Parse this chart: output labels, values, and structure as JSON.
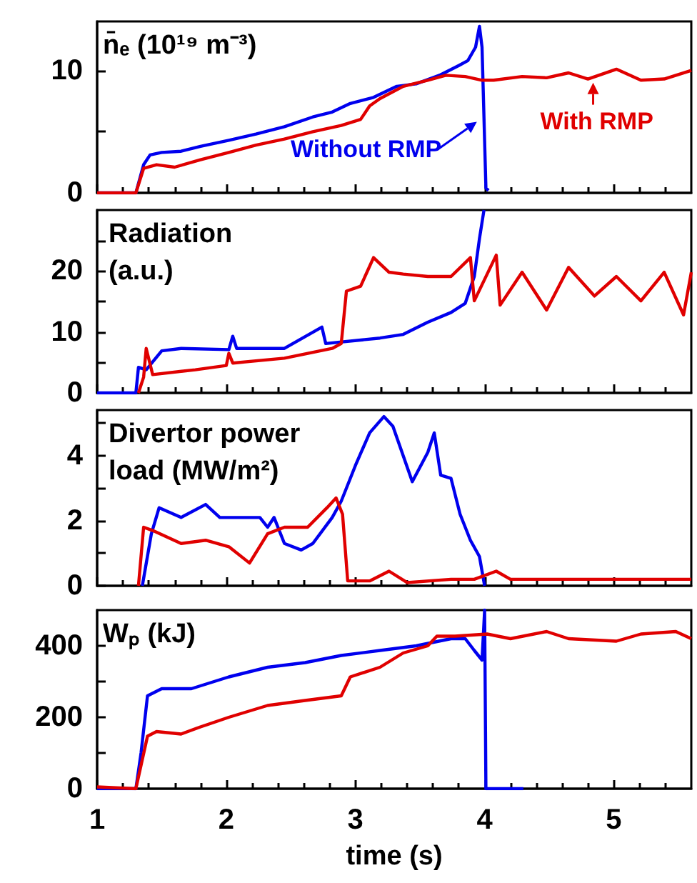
{
  "chart_data": [
    {
      "type": "line",
      "ylabel": "n̄ₑ (10¹⁹ m⁻³)",
      "xlim": [
        1,
        5.6
      ],
      "xticks": [
        1,
        2,
        3,
        4,
        5
      ],
      "ylim": [
        0,
        14
      ],
      "yticks": [
        0,
        {
          "value": 5,
          "label": null
        },
        10
      ],
      "tick_labels": "y",
      "series": [
        {
          "name": "Without RMP",
          "color": "#0000ee",
          "x": [
            1.0,
            1.3,
            1.36,
            1.41,
            1.5,
            1.65,
            1.8,
            2.02,
            2.23,
            2.45,
            2.67,
            2.82,
            2.96,
            3.14,
            3.32,
            3.47,
            3.65,
            3.8,
            3.87,
            3.93,
            3.96,
            3.98,
            4.01,
            4.03
          ],
          "values": [
            0,
            0,
            2.3,
            3.1,
            3.3,
            3.4,
            3.8,
            4.3,
            4.8,
            5.4,
            6.2,
            6.6,
            7.3,
            7.8,
            8.7,
            8.9,
            9.6,
            10.4,
            10.8,
            11.9,
            13.6,
            11.9,
            0.4,
            0.2
          ]
        },
        {
          "name": "With RMP",
          "color": "#e00000",
          "x": [
            1.0,
            1.3,
            1.36,
            1.46,
            1.6,
            1.8,
            2.02,
            2.23,
            2.45,
            2.67,
            2.89,
            3.04,
            3.11,
            3.19,
            3.37,
            3.56,
            3.7,
            3.85,
            3.98,
            4.07,
            4.29,
            4.48,
            4.65,
            4.8,
            5.02,
            5.21,
            5.39,
            5.6
          ],
          "values": [
            0,
            0,
            2.0,
            2.3,
            2.1,
            2.7,
            3.3,
            3.9,
            4.4,
            5.0,
            5.5,
            6.0,
            7.1,
            7.7,
            8.7,
            9.2,
            9.6,
            9.5,
            9.2,
            9.2,
            9.5,
            9.4,
            9.8,
            9.3,
            10.1,
            9.2,
            9.3,
            10.0
          ]
        }
      ]
    },
    {
      "type": "line",
      "ylabel": "Radiation (a.u.)",
      "xlim": [
        1,
        5.6
      ],
      "xticks": [
        1,
        2,
        3,
        4,
        5
      ],
      "ylim": [
        0,
        30
      ],
      "yticks": [
        0,
        {
          "value": 5,
          "label": null
        },
        10,
        {
          "value": 15,
          "label": null
        },
        20,
        {
          "value": 25,
          "label": null
        }
      ],
      "tick_labels": "y",
      "series": [
        {
          "color": "#0000ee",
          "x": [
            1.0,
            1.3,
            1.32,
            1.38,
            1.5,
            1.65,
            2.02,
            2.05,
            2.08,
            2.45,
            2.74,
            2.77,
            3.19,
            3.37,
            3.56,
            3.74,
            3.85,
            3.92,
            3.96,
            3.995
          ],
          "values": [
            0,
            0,
            4.2,
            3.8,
            6.9,
            7.3,
            7.1,
            9.3,
            7.3,
            7.3,
            10.8,
            8.1,
            9.0,
            9.6,
            11.6,
            13.2,
            14.7,
            19.1,
            25.3,
            30
          ]
        },
        {
          "color": "#e00000",
          "x": [
            1.32,
            1.36,
            1.38,
            1.43,
            1.76,
            2.0,
            2.02,
            2.05,
            2.45,
            2.82,
            2.89,
            2.93,
            3.04,
            3.14,
            3.26,
            3.37,
            3.56,
            3.74,
            3.89,
            3.92,
            4.09,
            4.12,
            4.29,
            4.48,
            4.65,
            4.85,
            5.02,
            5.21,
            5.39,
            5.54,
            5.6
          ],
          "values": [
            0,
            2.6,
            7.3,
            3.0,
            3.8,
            4.5,
            6.5,
            4.9,
            5.7,
            7.3,
            8.1,
            16.7,
            17.5,
            22.2,
            19.8,
            19.5,
            19.1,
            19.1,
            22.2,
            15.1,
            22.6,
            14.4,
            19.8,
            13.6,
            20.6,
            15.9,
            19.1,
            15.1,
            19.8,
            12.8,
            19.8
          ]
        }
      ]
    },
    {
      "type": "line",
      "ylabel": "Divertor power load (MW/m²)",
      "xlim": [
        1,
        5.6
      ],
      "xticks": [
        1,
        2,
        3,
        4,
        5
      ],
      "ylim": [
        0,
        5.4
      ],
      "yticks": [
        0,
        {
          "value": 1,
          "label": null
        },
        2,
        {
          "value": 3,
          "label": null
        },
        4,
        {
          "value": 5,
          "label": null
        }
      ],
      "tick_labels": "y",
      "series": [
        {
          "color": "#0000ee",
          "x": [
            1.35,
            1.42,
            1.48,
            1.65,
            1.84,
            1.95,
            2.1,
            2.26,
            2.32,
            2.37,
            2.45,
            2.58,
            2.67,
            2.82,
            2.89,
            3.0,
            3.11,
            3.22,
            3.29,
            3.44,
            3.56,
            3.61,
            3.66,
            3.74,
            3.81,
            3.89,
            3.96,
            4.0
          ],
          "values": [
            0,
            1.6,
            2.4,
            2.1,
            2.5,
            2.1,
            2.1,
            2.1,
            1.8,
            2.1,
            1.3,
            1.1,
            1.3,
            2.1,
            2.6,
            3.7,
            4.7,
            5.2,
            4.9,
            3.2,
            4.1,
            4.7,
            3.4,
            3.3,
            2.2,
            1.4,
            0.9,
            0
          ]
        },
        {
          "color": "#e00000",
          "x": [
            1.32,
            1.36,
            1.43,
            1.65,
            1.84,
            2.02,
            2.18,
            2.32,
            2.45,
            2.63,
            2.78,
            2.85,
            2.9,
            2.94,
            3.11,
            3.26,
            3.4,
            3.74,
            3.92,
            4.09,
            4.2,
            5.6
          ],
          "values": [
            0,
            1.8,
            1.7,
            1.3,
            1.4,
            1.2,
            0.7,
            1.6,
            1.8,
            1.8,
            2.4,
            2.7,
            2.2,
            0.15,
            0.15,
            0.45,
            0.1,
            0.2,
            0.2,
            0.45,
            0.2,
            0.2
          ]
        }
      ]
    },
    {
      "type": "line",
      "ylabel": "Wₚ (kJ)",
      "xlabel": "time (s)",
      "xlim": [
        1,
        5.6
      ],
      "xticks": [
        1,
        2,
        3,
        4,
        5
      ],
      "ylim": [
        0,
        500
      ],
      "yticks": [
        0,
        {
          "value": 100,
          "label": null
        },
        200,
        {
          "value": 300,
          "label": null
        },
        400
      ],
      "series": [
        {
          "color": "#0000ee",
          "x": [
            1.0,
            1.3,
            1.34,
            1.39,
            1.5,
            1.73,
            2.02,
            2.32,
            2.61,
            2.89,
            3.19,
            3.47,
            3.74,
            3.85,
            3.92,
            3.98,
            4.0,
            4.01,
            4.3
          ],
          "values": [
            0,
            0,
            100,
            260,
            280,
            280,
            313,
            340,
            353,
            373,
            387,
            400,
            420,
            420,
            387,
            360,
            500,
            0,
            0
          ]
        },
        {
          "color": "#e00000",
          "x": [
            1.0,
            1.3,
            1.39,
            1.46,
            1.65,
            1.8,
            2.02,
            2.32,
            2.61,
            2.89,
            2.96,
            3.19,
            3.37,
            3.56,
            3.63,
            3.77,
            4.02,
            4.2,
            4.48,
            4.65,
            5.02,
            5.21,
            5.48,
            5.6
          ],
          "values": [
            5,
            0,
            147,
            160,
            153,
            173,
            200,
            233,
            247,
            260,
            313,
            340,
            380,
            400,
            427,
            427,
            433,
            420,
            440,
            420,
            413,
            433,
            440,
            420
          ]
        }
      ]
    }
  ]
}
